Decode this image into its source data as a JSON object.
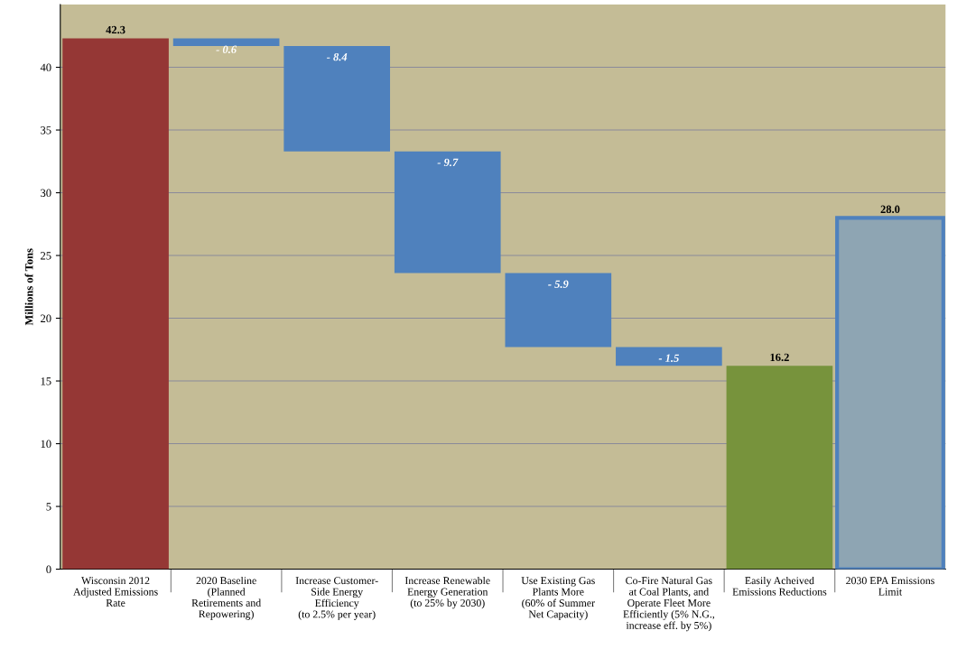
{
  "chart_data": {
    "type": "bar",
    "ylabel": "Millions of Tons",
    "categories": [
      "Wisconsin 2012\nAdjusted Emissions\nRate",
      "2020 Baseline\n(Planned\nRetirements and\nRepowering)",
      "Increase Customer-\nSide Energy\nEfficiency\n(to 2.5% per year)",
      "Increase Renewable\nEnergy Generation\n(to 25% by 2030)",
      "Use Existing Gas\nPlants More\n(60% of Summer\nNet Capacity)",
      "Co-Fire Natural Gas\nat Coal Plants, and\nOperate Fleet More\nEfficiently (5% N.G.,\nincrease eff. by 5%)",
      "Easily Acheived\nEmissions Reductions",
      "2030 EPA Emissions\nLimit"
    ],
    "values": [
      42.3,
      -0.6,
      -8.4,
      -9.7,
      -5.9,
      -1.5,
      16.2,
      28.0
    ],
    "base": [
      0,
      42.3,
      41.7,
      33.3,
      23.6,
      17.7,
      0,
      0
    ],
    "value_labels": [
      "42.3",
      "- 0.6",
      "- 8.4",
      "- 9.7",
      "- 5.9",
      "- 1.5",
      "16.2",
      "28.0"
    ],
    "colors": [
      "#953735",
      "#4f81bd",
      "#4f81bd",
      "#4f81bd",
      "#4f81bd",
      "#4f81bd",
      "#77933c",
      "#8ea5b3"
    ],
    "ylim": [
      0,
      45
    ],
    "yticks": [
      0,
      5,
      10,
      15,
      20,
      25,
      30,
      35,
      40
    ],
    "grid": "y"
  }
}
